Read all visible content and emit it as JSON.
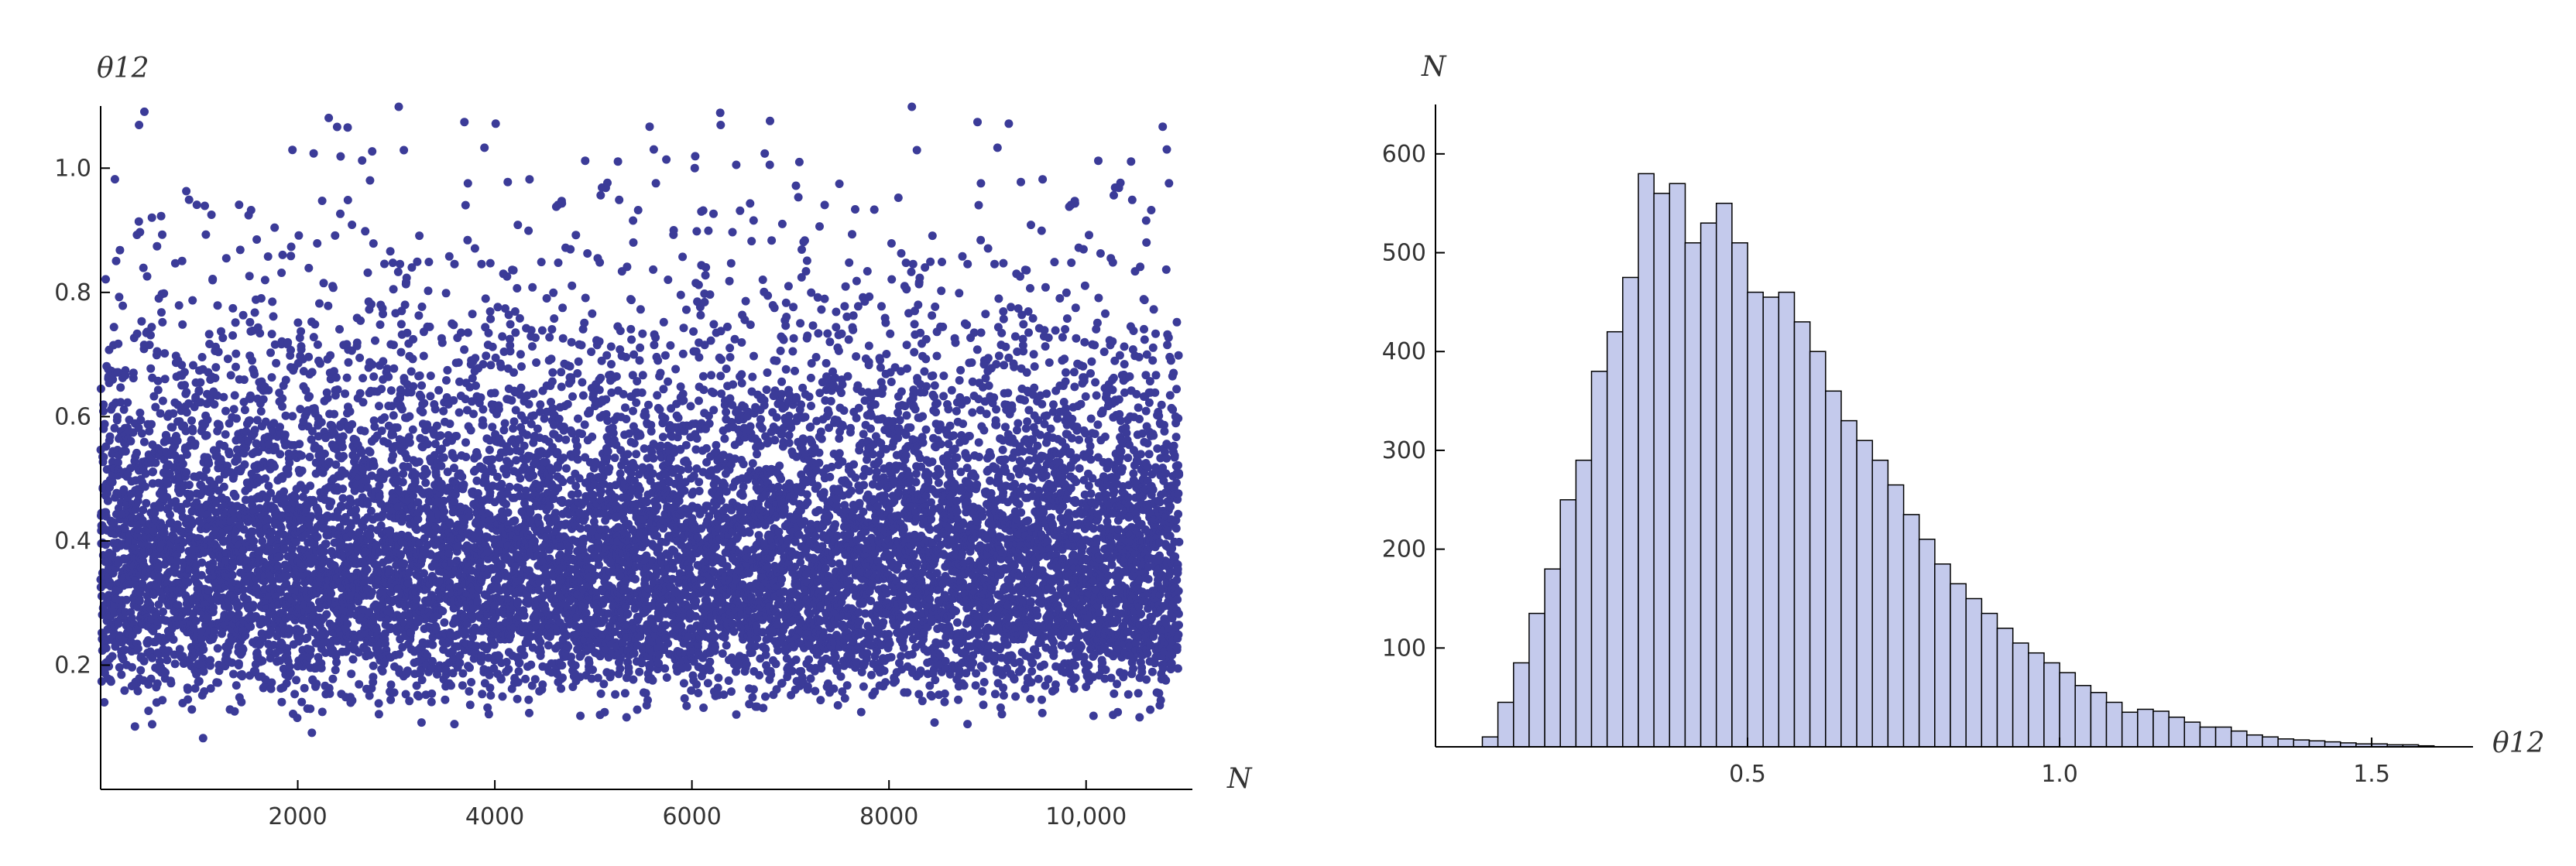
{
  "chart_data": [
    {
      "type": "scatter",
      "xlabel": "N",
      "ylabel": "θ12",
      "xlim": [
        0,
        11000
      ],
      "ylim": [
        0,
        1.1
      ],
      "xticks": [
        2000,
        4000,
        6000,
        8000,
        10000
      ],
      "xtick_labels": [
        "2000",
        "4000",
        "6000",
        "8000",
        "10,000"
      ],
      "yticks": [
        0.2,
        0.4,
        0.6,
        0.8,
        1.0
      ],
      "ytick_labels": [
        "0.2",
        "0.4",
        "0.6",
        "0.8",
        "1.0"
      ],
      "n_points": 11000,
      "y_distribution": {
        "mean": 0.43,
        "mode": 0.38,
        "min": 0.08,
        "max": 1.1
      },
      "grid": false,
      "marker_color": "#3b3b98"
    },
    {
      "type": "bar",
      "subtype": "histogram",
      "xlabel": "θ12",
      "ylabel": "N",
      "xlim": [
        0,
        1.65
      ],
      "ylim": [
        0,
        650
      ],
      "bin_width": 0.025,
      "bin_start": 0.075,
      "xticks": [
        0.5,
        1.0,
        1.5
      ],
      "xtick_labels": [
        "0.5",
        "1.0",
        "1.5"
      ],
      "yticks": [
        100,
        200,
        300,
        400,
        500,
        600
      ],
      "ytick_labels": [
        "100",
        "200",
        "300",
        "400",
        "500",
        "600"
      ],
      "values": [
        10,
        45,
        85,
        135,
        180,
        250,
        290,
        380,
        420,
        475,
        580,
        560,
        570,
        510,
        530,
        550,
        510,
        460,
        455,
        460,
        430,
        400,
        360,
        330,
        310,
        290,
        265,
        235,
        210,
        185,
        165,
        150,
        135,
        120,
        105,
        95,
        85,
        75,
        62,
        55,
        45,
        35,
        38,
        36,
        30,
        25,
        20,
        20,
        16,
        12,
        10,
        8,
        7,
        6,
        5,
        4,
        3,
        3,
        2,
        2,
        1
      ],
      "grid": false,
      "bar_fill": "#c4caec",
      "bar_edge": "#000000"
    }
  ]
}
